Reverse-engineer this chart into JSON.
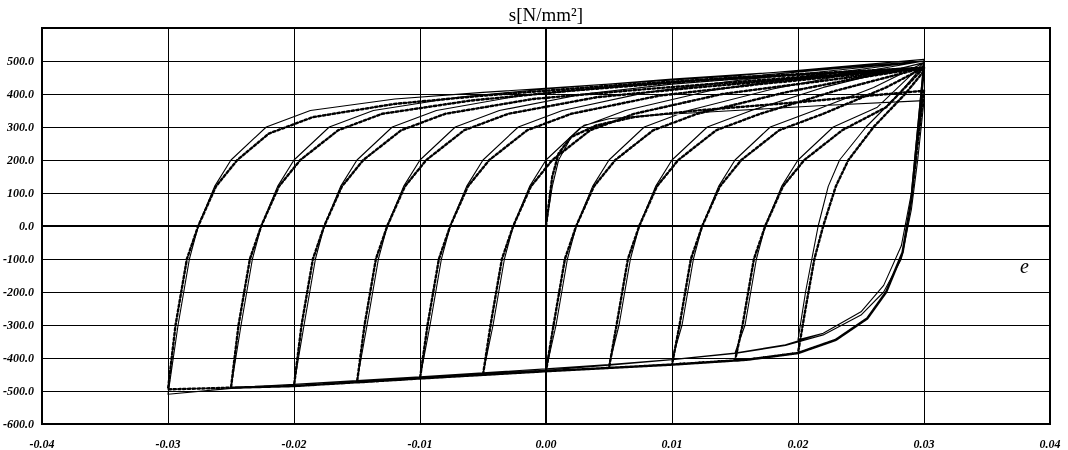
{
  "chart_data": {
    "type": "line",
    "xlabel": "e",
    "ylabel": "s[N/mm²]",
    "xlim": [
      -0.04,
      0.04
    ],
    "ylim": [
      -600,
      600
    ],
    "xticks": [
      -0.04,
      -0.03,
      -0.02,
      -0.01,
      {
        "value": 0,
        "label": "0.00"
      },
      0.01,
      0.02,
      0.03,
      0.04
    ],
    "yticks": [
      {
        "value": -600,
        "label": "-600.0"
      },
      {
        "value": -500,
        "label": "-500.0"
      },
      {
        "value": -400,
        "label": "-400.0"
      },
      {
        "value": -300,
        "label": "-300.0"
      },
      {
        "value": -200,
        "label": "-200.0"
      },
      {
        "value": -100,
        "label": "-100.0"
      },
      {
        "value": 0,
        "label": "0.0"
      },
      {
        "value": 100,
        "label": "100.0"
      },
      {
        "value": 200,
        "label": "200.0"
      },
      {
        "value": 300,
        "label": "300.0"
      },
      {
        "value": 400,
        "label": "400.0"
      },
      {
        "value": 500,
        "label": "500.0"
      },
      {
        "value": 600,
        "label": null
      }
    ],
    "grid": true,
    "marker": "none",
    "series": [
      {
        "color": "#000000",
        "line_style": "solid",
        "x": [
          0,
          0.0005,
          0.001,
          0.002,
          0.003,
          0.005,
          0.008,
          0.015,
          0.022,
          0.03,
          0.0295,
          0.029,
          0.0282,
          0.0268,
          0.025,
          0.022,
          0.019,
          0.015,
          0.01,
          0.005,
          0,
          -0.005,
          -0.01,
          -0.015,
          -0.02,
          -0.025,
          -0.03,
          -0.0292,
          -0.0283,
          -0.0276,
          -0.0263,
          -0.025,
          -0.0222,
          -0.0187,
          -0.012,
          -0.005,
          0.005,
          0.015,
          0.03,
          0.0295,
          0.029,
          0.0282,
          0.0268,
          0.025,
          0.022,
          0.019,
          0.015,
          0.01,
          0.005,
          0,
          -0.005,
          -0.01,
          -0.015,
          -0.02,
          -0.025,
          -0.0242,
          -0.0233,
          -0.0226,
          -0.0213,
          -0.02,
          -0.0172,
          -0.0137,
          -0.007,
          0,
          0.01,
          0.02,
          0.03,
          0.0295,
          0.029,
          0.0282,
          0.0268,
          0.025,
          0.022,
          0.019,
          0.015,
          0.01,
          0.005,
          0,
          -0.005,
          -0.01,
          -0.015,
          -0.02,
          -0.0192,
          -0.0183,
          -0.0176,
          -0.0163,
          -0.015,
          -0.0122,
          -0.0087,
          -0.002,
          0.005,
          0.015,
          0.03,
          0.0295,
          0.029,
          0.0282,
          0.0268,
          0.025,
          0.022,
          0.019,
          0.015,
          0.01,
          0.005,
          0,
          -0.005,
          -0.01,
          -0.015,
          -0.0142,
          -0.0133,
          -0.0126,
          -0.0113,
          -0.01,
          -0.0072,
          -0.0037,
          0.003,
          0.01,
          0.02,
          0.03,
          0.0295,
          0.029,
          0.0282,
          0.0268,
          0.025,
          0.022,
          0.019,
          0.015,
          0.01,
          0.005,
          0,
          -0.005,
          -0.01,
          -0.0092,
          -0.0083,
          -0.0076,
          -0.0063,
          -0.005,
          -0.0022,
          0.0013,
          0.008,
          0.015,
          0.03,
          0.0295,
          0.029,
          0.0282,
          0.0268,
          0.025,
          0.022,
          0.019,
          0.015,
          0.01,
          0.005,
          0,
          -0.005,
          -0.0042,
          -0.0033,
          -0.0026,
          -0.0013,
          0,
          0.0028,
          0.0063,
          0.013,
          0.02,
          0.03,
          0.0295,
          0.029,
          0.0282,
          0.0268,
          0.025,
          0.022,
          0.019,
          0.015,
          0.01,
          0.005,
          0,
          0.0008,
          0.0017,
          0.0024,
          0.0037,
          0.005,
          0.0078,
          0.0113,
          0.018,
          0.024,
          0.03,
          0.0295,
          0.029,
          0.0282,
          0.0268,
          0.025,
          0.022,
          0.019,
          0.015,
          0.01,
          0.005,
          0.0058,
          0.0067,
          0.0074,
          0.0087,
          0.01,
          0.0128,
          0.0163,
          0.022,
          0.03,
          0.0295,
          0.029,
          0.0282,
          0.0268,
          0.025,
          0.022,
          0.019,
          0.015,
          0.01,
          0.0108,
          0.0117,
          0.0124,
          0.0137,
          0.015,
          0.0178,
          0.0213,
          0.026,
          0.03,
          0.0295,
          0.029,
          0.0282,
          0.0268,
          0.025,
          0.022,
          0.019,
          0.015,
          0.0158,
          0.0167,
          0.0174,
          0.0187,
          0.02,
          0.0228,
          0.0263,
          0.03,
          0.0295,
          0.029,
          0.0282,
          0.0268,
          0.025,
          0.022,
          0.02,
          0.0206,
          0.0211,
          0.0216,
          0.0224,
          0.0233,
          0.0254,
          0.028,
          0.03
        ],
        "values": [
          0,
          120,
          200,
          270,
          305,
          325,
          335,
          350,
          365,
          380,
          200,
          50,
          -100,
          -200,
          -270,
          -330,
          -362,
          -386,
          -405,
          -420,
          -433,
          -445,
          -457,
          -468,
          -480,
          -492,
          -510,
          -300,
          -100,
          0,
          120,
          200,
          300,
          350,
          385,
          405,
          430,
          455,
          505,
          300,
          100,
          -60,
          -180,
          -260,
          -325,
          -360,
          -385,
          -405,
          -422,
          -437,
          -448,
          -460,
          -470,
          -480,
          -490,
          -300,
          -100,
          0,
          120,
          200,
          300,
          350,
          390,
          415,
          445,
          470,
          500,
          300,
          100,
          -60,
          -180,
          -260,
          -325,
          -360,
          -385,
          -405,
          -422,
          -437,
          -448,
          -460,
          -470,
          -480,
          -300,
          -100,
          0,
          120,
          200,
          300,
          350,
          395,
          420,
          450,
          500,
          300,
          100,
          -60,
          -180,
          -260,
          -325,
          -360,
          -385,
          -405,
          -422,
          -437,
          -448,
          -460,
          -470,
          -300,
          -100,
          0,
          120,
          200,
          300,
          350,
          400,
          430,
          460,
          500,
          300,
          100,
          -60,
          -180,
          -260,
          -325,
          -360,
          -385,
          -405,
          -422,
          -437,
          -448,
          -460,
          -300,
          -100,
          0,
          120,
          200,
          300,
          350,
          405,
          440,
          500,
          300,
          100,
          -60,
          -180,
          -260,
          -325,
          -360,
          -385,
          -405,
          -422,
          -437,
          -448,
          -300,
          -100,
          0,
          120,
          200,
          300,
          350,
          410,
          450,
          500,
          300,
          100,
          -60,
          -180,
          -260,
          -325,
          -360,
          -385,
          -405,
          -422,
          -437,
          -300,
          -100,
          0,
          120,
          200,
          300,
          350,
          415,
          460,
          500,
          300,
          100,
          -60,
          -180,
          -260,
          -325,
          -360,
          -385,
          -405,
          -422,
          -300,
          -100,
          0,
          120,
          200,
          300,
          350,
          420,
          495,
          300,
          100,
          -60,
          -180,
          -260,
          -325,
          -360,
          -385,
          -405,
          -300,
          -100,
          0,
          120,
          200,
          300,
          350,
          420,
          495,
          300,
          100,
          -60,
          -180,
          -260,
          -325,
          -360,
          -385,
          -300,
          -100,
          0,
          120,
          200,
          300,
          360,
          495,
          300,
          100,
          -60,
          -180,
          -260,
          -325,
          -345,
          -200,
          -100,
          0,
          120,
          200,
          300,
          400,
          490
        ]
      },
      {
        "color": "#000000",
        "line_style": "dotted",
        "x": [
          0,
          0.0005,
          0.001,
          0.002,
          0.004,
          0.007,
          0.012,
          0.02,
          0.03,
          0.0295,
          0.029,
          0.0283,
          0.027,
          0.0255,
          0.023,
          0.02,
          0.016,
          0.01,
          0.005,
          0,
          -0.01,
          -0.02,
          -0.03,
          -0.0294,
          -0.0285,
          -0.0276,
          -0.0262,
          -0.0245,
          -0.022,
          -0.0185,
          -0.012,
          -0.005,
          0.005,
          0.015,
          0.03,
          0.0295,
          0.029,
          0.0283,
          0.027,
          0.0255,
          0.023,
          0.02,
          0.016,
          0.01,
          0.005,
          0,
          -0.01,
          -0.02,
          -0.025,
          -0.0244,
          -0.0235,
          -0.0226,
          -0.0212,
          -0.0195,
          -0.0165,
          -0.013,
          -0.006,
          0.002,
          0.012,
          0.03,
          0.0295,
          0.029,
          0.0283,
          0.027,
          0.0255,
          0.023,
          0.02,
          0.016,
          0.01,
          0.005,
          0,
          -0.01,
          -0.02,
          -0.0194,
          -0.0185,
          -0.0176,
          -0.0162,
          -0.0145,
          -0.0115,
          -0.008,
          -0.001,
          0.008,
          0.018,
          0.03,
          0.0295,
          0.029,
          0.0283,
          0.027,
          0.0255,
          0.023,
          0.02,
          0.016,
          0.01,
          0.005,
          0,
          -0.01,
          -0.015,
          -0.0144,
          -0.0135,
          -0.0126,
          -0.0112,
          -0.0095,
          -0.0065,
          -0.003,
          0.004,
          0.012,
          0.021,
          0.03,
          0.0295,
          0.029,
          0.0283,
          0.027,
          0.0255,
          0.023,
          0.02,
          0.016,
          0.01,
          0.005,
          0,
          -0.01,
          -0.0094,
          -0.0085,
          -0.0076,
          -0.0062,
          -0.0045,
          -0.0015,
          0.002,
          0.009,
          0.017,
          0.03,
          0.0295,
          0.029,
          0.0283,
          0.027,
          0.0255,
          0.023,
          0.02,
          0.016,
          0.01,
          0.005,
          0,
          -0.005,
          -0.0044,
          -0.0035,
          -0.0026,
          -0.0012,
          0.0005,
          0.0035,
          0.007,
          0.014,
          0.022,
          0.03,
          0.0295,
          0.029,
          0.0283,
          0.027,
          0.0255,
          0.023,
          0.02,
          0.016,
          0.01,
          0.005,
          0,
          0.0006,
          0.0015,
          0.0024,
          0.0038,
          0.0055,
          0.0085,
          0.012,
          0.019,
          0.025,
          0.03,
          0.0295,
          0.029,
          0.0283,
          0.027,
          0.0255,
          0.023,
          0.02,
          0.016,
          0.01,
          0.005,
          0.0056,
          0.0065,
          0.0074,
          0.0088,
          0.0105,
          0.0135,
          0.017,
          0.023,
          0.03,
          0.0295,
          0.029,
          0.0283,
          0.027,
          0.0255,
          0.023,
          0.02,
          0.016,
          0.01,
          0.0106,
          0.0115,
          0.0124,
          0.0138,
          0.0155,
          0.0185,
          0.022,
          0.027,
          0.03,
          0.0295,
          0.029,
          0.0283,
          0.027,
          0.0255,
          0.023,
          0.02,
          0.016,
          0.015,
          0.0156,
          0.0165,
          0.0174,
          0.0188,
          0.0205,
          0.0235,
          0.027,
          0.03,
          0.0295,
          0.029,
          0.0283,
          0.027,
          0.0255,
          0.023,
          0.02,
          0.0206,
          0.0213,
          0.022,
          0.023,
          0.024,
          0.026,
          0.0285,
          0.03
        ],
        "values": [
          0,
          150,
          220,
          270,
          305,
          330,
          350,
          375,
          410,
          250,
          80,
          -80,
          -200,
          -280,
          -345,
          -385,
          -405,
          -420,
          -430,
          -440,
          -462,
          -485,
          -495,
          -300,
          -100,
          0,
          120,
          200,
          280,
          330,
          370,
          395,
          425,
          450,
          480,
          280,
          80,
          -80,
          -200,
          -280,
          -345,
          -385,
          -405,
          -420,
          -430,
          -440,
          -462,
          -485,
          -490,
          -300,
          -100,
          0,
          120,
          200,
          290,
          340,
          380,
          410,
          440,
          480,
          280,
          80,
          -80,
          -200,
          -280,
          -345,
          -385,
          -405,
          -420,
          -430,
          -440,
          -462,
          -485,
          -300,
          -100,
          0,
          120,
          200,
          290,
          340,
          385,
          415,
          445,
          480,
          280,
          80,
          -80,
          -200,
          -280,
          -345,
          -385,
          -405,
          -420,
          -430,
          -440,
          -462,
          -474,
          -300,
          -100,
          0,
          120,
          200,
          290,
          340,
          390,
          420,
          450,
          480,
          280,
          80,
          -80,
          -200,
          -280,
          -345,
          -385,
          -405,
          -420,
          -430,
          -440,
          -462,
          -300,
          -100,
          0,
          120,
          200,
          290,
          340,
          395,
          430,
          480,
          280,
          80,
          -80,
          -200,
          -280,
          -345,
          -385,
          -405,
          -420,
          -430,
          -440,
          -451,
          -300,
          -100,
          0,
          120,
          200,
          290,
          340,
          400,
          440,
          480,
          280,
          80,
          -80,
          -200,
          -280,
          -345,
          -385,
          -405,
          -420,
          -430,
          -440,
          -300,
          -100,
          0,
          120,
          200,
          290,
          340,
          405,
          450,
          480,
          280,
          80,
          -80,
          -200,
          -280,
          -345,
          -385,
          -405,
          -420,
          -430,
          -300,
          -100,
          0,
          120,
          200,
          290,
          340,
          410,
          480,
          280,
          80,
          -80,
          -200,
          -280,
          -345,
          -385,
          -405,
          -420,
          -300,
          -100,
          0,
          120,
          200,
          290,
          340,
          420,
          480,
          280,
          80,
          -80,
          -200,
          -280,
          -345,
          -385,
          -405,
          -408,
          -300,
          -100,
          0,
          120,
          200,
          290,
          360,
          480,
          280,
          80,
          -80,
          -200,
          -280,
          -345,
          -385,
          -250,
          -100,
          0,
          120,
          200,
          300,
          400,
          470
        ]
      }
    ]
  }
}
